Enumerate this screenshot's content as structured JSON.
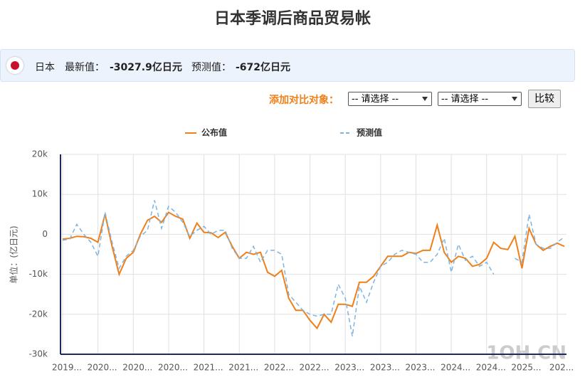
{
  "header": {
    "title": "日本季调后商品贸易帐",
    "country": "日本",
    "latest_label": "最新值：",
    "latest_value": "-3027.9亿日元",
    "forecast_label": "预测值：",
    "forecast_value": "-672亿日元"
  },
  "compare": {
    "label": "添加对比对象：",
    "select1": "-- 请选择 --",
    "select2": "-- 请选择 --",
    "button": "比较"
  },
  "watermark": "1OH.CN",
  "chart_data": {
    "type": "line",
    "y_label": "单位：(亿日元)",
    "categories": [
      "2019...",
      null,
      null,
      null,
      null,
      "2020...",
      null,
      null,
      null,
      null,
      "2020...",
      null,
      null,
      null,
      null,
      "2020...",
      null,
      null,
      null,
      null,
      "2021...",
      null,
      null,
      null,
      null,
      "2021...",
      null,
      null,
      null,
      null,
      "2022...",
      null,
      null,
      null,
      null,
      "2022...",
      null,
      null,
      null,
      null,
      "2023...",
      null,
      null,
      null,
      null,
      "2023...",
      null,
      null,
      null,
      null,
      "2023...",
      null,
      null,
      null,
      null,
      "2024...",
      null,
      null,
      null,
      null,
      "2024...",
      null,
      null,
      null,
      null,
      "2025...",
      null,
      null,
      null,
      null,
      "202...",
      null
    ],
    "series": [
      {
        "name": "公布值",
        "color": "#f07f17",
        "dashed": false,
        "values": [
          -1200,
          -1000,
          -500,
          -600,
          -1000,
          -2000,
          5000,
          -3000,
          -10000,
          -6000,
          -4500,
          0,
          3500,
          4500,
          3000,
          5500,
          4500,
          3800,
          -1000,
          2800,
          500,
          400,
          -800,
          500,
          -3000,
          -6000,
          -4500,
          -5000,
          -4500,
          -9500,
          -10500,
          -9000,
          -16000,
          -19000,
          -19000,
          -21500,
          -23500,
          -20000,
          -22000,
          -17500,
          -17500,
          -18000,
          -12000,
          -12000,
          -10500,
          -8000,
          -5500,
          -5500,
          -5500,
          -4500,
          -4800,
          -4000,
          -4000,
          2300,
          -4500,
          -7000,
          -5500,
          -6000,
          -8000,
          -7500,
          -6000,
          -2000,
          -3500,
          -3800,
          -500,
          -8500,
          1500,
          -2500,
          -4000,
          -3000,
          -2200,
          -3027.9
        ]
      },
      {
        "name": "预测值",
        "color": "#7fb4e0",
        "dashed": true,
        "values": [
          -1500,
          -1200,
          2500,
          0,
          -2000,
          -5500,
          5500,
          -2000,
          -8500,
          -5500,
          -4000,
          -500,
          1000,
          8500,
          1500,
          7000,
          5500,
          3000,
          -500,
          1000,
          2000,
          0,
          1000,
          1000,
          -3500,
          -6000,
          -6000,
          -3000,
          -7000,
          -4000,
          -4000,
          -5000,
          -15000,
          -17000,
          -19000,
          -20000,
          -20500,
          -20000,
          -20000,
          -12500,
          -16000,
          -25500,
          -13000,
          -17000,
          -12000,
          -8000,
          -7000,
          -5000,
          -4000,
          -4500,
          -5000,
          -7000,
          -7000,
          -5000,
          -1000,
          -9500,
          -2500,
          -6500,
          -5500,
          -8000,
          -7000,
          -10000,
          null,
          null,
          -6000,
          -7000,
          5000,
          -2500,
          -3500,
          -3500,
          -2000,
          -672
        ]
      }
    ],
    "ylim": [
      -30000,
      20000
    ],
    "yticks": [
      {
        "value": -30000,
        "label": "-30k"
      },
      {
        "value": -20000,
        "label": "-20k"
      },
      {
        "value": -10000,
        "label": "-10k"
      },
      0,
      {
        "value": 10000,
        "label": "10k"
      },
      {
        "value": 20000,
        "label": "20k"
      }
    ],
    "grid": true
  }
}
